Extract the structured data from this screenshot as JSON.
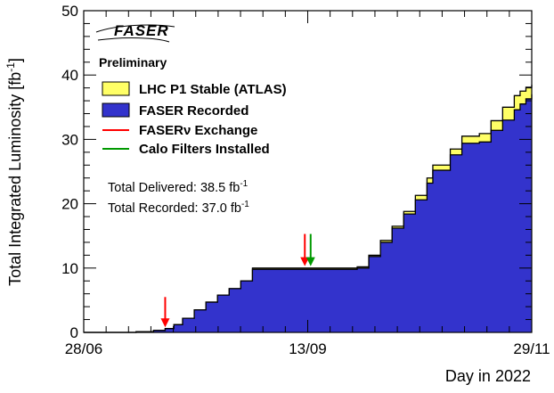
{
  "chart_data": {
    "type": "area",
    "xlabel": "Day in 2022",
    "ylabel": "Total Integrated Luminosity [fb",
    "ylabel_unit_sup": "-1",
    "ylabel_close": "]",
    "xlim_days": [
      0,
      154
    ],
    "ylim": [
      0,
      50
    ],
    "y_ticks": [
      0,
      10,
      20,
      30,
      40,
      50
    ],
    "x_ticks": [
      {
        "day": 0,
        "label": "28/06"
      },
      {
        "day": 77,
        "label": "13/09"
      },
      {
        "day": 154,
        "label": "29/11"
      }
    ],
    "logo": "FASER",
    "subtitle": "Preliminary",
    "legend": [
      {
        "label": "LHC P1 Stable (ATLAS)",
        "kind": "box",
        "color": "#ffff66"
      },
      {
        "label": "FASER Recorded",
        "kind": "box",
        "color": "#3333cc"
      },
      {
        "label": "FASERν Exchange",
        "kind": "line",
        "color": "#ff0000"
      },
      {
        "label": "Calo Filters Installed",
        "kind": "line",
        "color": "#009900"
      }
    ],
    "annotations": {
      "delivered_prefix": "Total Delivered: 38.5 fb",
      "recorded_prefix": "Total Recorded: 37.0 fb",
      "unit_sup": "-1"
    },
    "series": [
      {
        "name": "LHC P1 Stable (ATLAS)",
        "color": "#ffff66",
        "x": [
          0,
          10,
          18,
          24,
          28,
          31,
          34,
          38,
          42,
          46,
          50,
          54,
          58,
          70,
          76,
          82,
          88,
          92,
          94,
          98,
          102,
          106,
          110,
          114,
          118,
          120,
          126,
          130,
          136,
          140,
          144,
          148,
          150,
          152,
          154
        ],
        "y": [
          0,
          0,
          0.1,
          0.3,
          0.6,
          1.2,
          2.2,
          3.5,
          4.7,
          5.8,
          6.8,
          8.0,
          10.0,
          10.0,
          10.0,
          10.0,
          10.0,
          10.0,
          10.2,
          12.0,
          14.3,
          16.5,
          18.8,
          21.3,
          24.0,
          26.0,
          28.5,
          30.5,
          30.9,
          32.9,
          35.0,
          36.8,
          37.5,
          38.1,
          38.5
        ]
      },
      {
        "name": "FASER Recorded",
        "color": "#3333cc",
        "x": [
          0,
          10,
          18,
          24,
          28,
          31,
          34,
          38,
          42,
          46,
          50,
          54,
          58,
          70,
          76,
          82,
          88,
          92,
          94,
          98,
          102,
          106,
          110,
          114,
          118,
          120,
          126,
          130,
          136,
          140,
          144,
          148,
          150,
          152,
          154
        ],
        "y": [
          0,
          0,
          0.1,
          0.3,
          0.6,
          1.2,
          2.2,
          3.5,
          4.7,
          5.8,
          6.8,
          8.0,
          9.8,
          9.8,
          9.8,
          9.8,
          9.8,
          9.8,
          10.0,
          11.8,
          14.0,
          16.2,
          18.4,
          20.6,
          23.2,
          25.2,
          27.6,
          29.4,
          29.6,
          31.4,
          33.0,
          34.6,
          35.5,
          36.3,
          37.0
        ]
      }
    ],
    "markers": [
      {
        "name": "FASERν Exchange",
        "color": "#ff0000",
        "day": 28,
        "y_from": 5.5,
        "y_to": 0.8
      },
      {
        "name": "FASERν Exchange",
        "color": "#ff0000",
        "day": 76,
        "y_from": 15.3,
        "y_to": 10.3
      },
      {
        "name": "Calo Filters Installed",
        "color": "#009900",
        "day": 78,
        "y_from": 15.3,
        "y_to": 10.3
      }
    ]
  }
}
